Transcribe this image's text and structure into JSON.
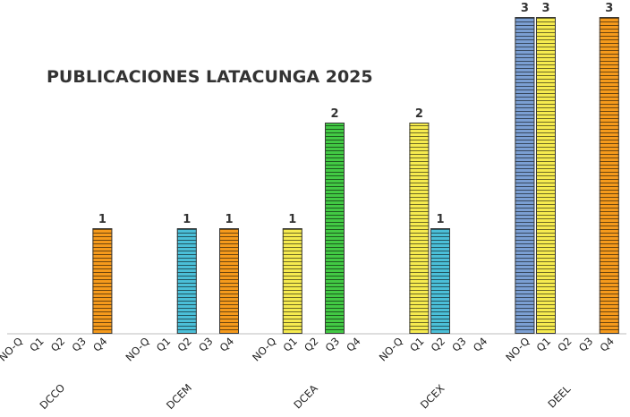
{
  "chart_data": {
    "type": "bar",
    "title": "PUBLICACIONES LATACUNGA 2025",
    "xlabel": "",
    "ylabel": "",
    "ylim": [
      0,
      3
    ],
    "grid": false,
    "legend": "none",
    "subcategories": [
      "NO-Q",
      "Q1",
      "Q2",
      "Q3",
      "Q4"
    ],
    "colors": {
      "NO-Q": "#7b9fd3",
      "Q1": "#f6eb4f",
      "Q2": "#4bbfd8",
      "Q3": "#42c944",
      "Q4": "#f59a1c"
    },
    "groups": [
      {
        "name": "DCCO",
        "values": [
          0,
          0,
          0,
          0,
          1
        ]
      },
      {
        "name": "DCEM",
        "values": [
          0,
          0,
          1,
          0,
          1
        ]
      },
      {
        "name": "DCEA",
        "values": [
          0,
          1,
          0,
          2,
          0
        ]
      },
      {
        "name": "DCEX",
        "values": [
          0,
          2,
          1,
          0,
          0
        ]
      },
      {
        "name": "DEEL",
        "values": [
          3,
          3,
          0,
          0,
          3
        ]
      }
    ]
  }
}
